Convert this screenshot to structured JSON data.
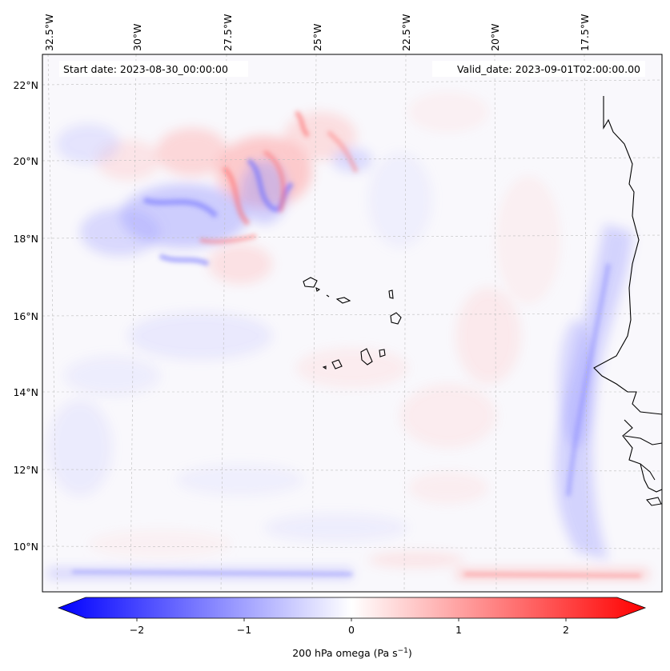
{
  "map": {
    "start_date": "Start date: 2023-08-30_00:00:00",
    "valid_date": "Valid_date: 2023-09-01T02:00:00.00",
    "lon_labels": [
      "32.5°W",
      "30°W",
      "27.5°W",
      "25°W",
      "22.5°W",
      "20°W",
      "17.5°W"
    ],
    "lat_labels": [
      "22°N",
      "20°N",
      "18°N",
      "16°N",
      "14°N",
      "12°N",
      "10°N"
    ]
  },
  "colorbar": {
    "label": "200 hPa omega (Pa s",
    "label_exponent": "−1",
    "label_close": ")",
    "ticks": [
      "−2",
      "−1",
      "0",
      "1",
      "2"
    ],
    "range": [
      -2.75,
      2.75
    ],
    "low_color": "#0000ff",
    "mid_color": "#ffffff",
    "high_color": "#ff0000"
  }
}
